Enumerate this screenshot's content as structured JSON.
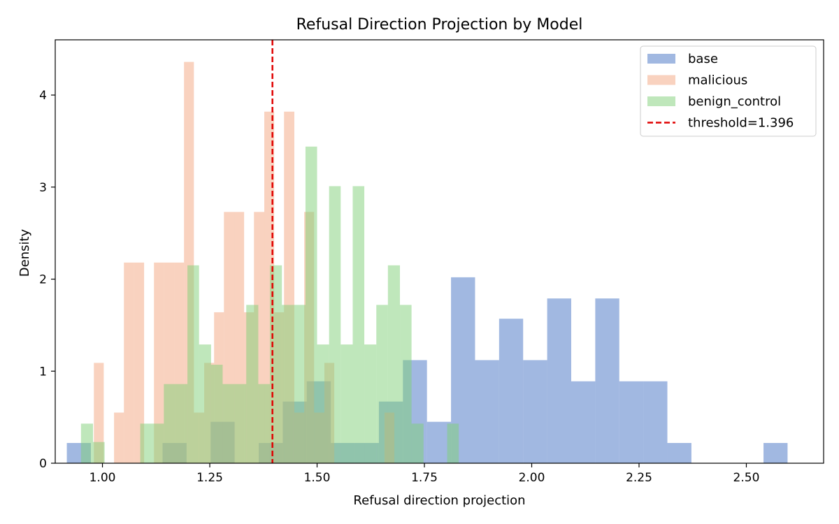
{
  "chart_data": {
    "type": "histogram",
    "title": "Refusal Direction Projection by Model",
    "xlabel": "Refusal direction projection",
    "ylabel": "Density",
    "xlim": [
      0.89,
      2.68
    ],
    "ylim": [
      0,
      4.6
    ],
    "xticks": [
      "1.00",
      "1.25",
      "1.50",
      "1.75",
      "2.00",
      "2.25",
      "2.50"
    ],
    "yticks": [
      "0",
      "1",
      "2",
      "3",
      "4"
    ],
    "grid": false,
    "legend_position": "top-right",
    "threshold": {
      "label": "threshold=1.396",
      "value": 1.396,
      "color": "#e00000"
    },
    "series": [
      {
        "name": "base",
        "color": "#4472c4",
        "bins": [
          {
            "x0": 0.917,
            "x1": 0.973,
            "density": 0.22
          },
          {
            "x0": 1.14,
            "x1": 1.196,
            "density": 0.22
          },
          {
            "x0": 1.252,
            "x1": 1.308,
            "density": 0.45
          },
          {
            "x0": 1.364,
            "x1": 1.42,
            "density": 0.22
          },
          {
            "x0": 1.42,
            "x1": 1.476,
            "density": 0.67
          },
          {
            "x0": 1.476,
            "x1": 1.532,
            "density": 0.89
          },
          {
            "x0": 1.532,
            "x1": 1.588,
            "density": 0.22
          },
          {
            "x0": 1.588,
            "x1": 1.644,
            "density": 0.22
          },
          {
            "x0": 1.644,
            "x1": 1.7,
            "density": 0.67
          },
          {
            "x0": 1.7,
            "x1": 1.756,
            "density": 1.12
          },
          {
            "x0": 1.756,
            "x1": 1.812,
            "density": 0.45
          },
          {
            "x0": 1.812,
            "x1": 1.868,
            "density": 2.02
          },
          {
            "x0": 1.868,
            "x1": 1.924,
            "density": 1.12
          },
          {
            "x0": 1.924,
            "x1": 1.98,
            "density": 1.57
          },
          {
            "x0": 1.98,
            "x1": 2.036,
            "density": 1.12
          },
          {
            "x0": 2.036,
            "x1": 2.092,
            "density": 1.79
          },
          {
            "x0": 2.092,
            "x1": 2.148,
            "density": 0.89
          },
          {
            "x0": 2.148,
            "x1": 2.204,
            "density": 1.79
          },
          {
            "x0": 2.204,
            "x1": 2.26,
            "density": 0.89
          },
          {
            "x0": 2.26,
            "x1": 2.316,
            "density": 0.89
          },
          {
            "x0": 2.316,
            "x1": 2.372,
            "density": 0.22
          },
          {
            "x0": 2.54,
            "x1": 2.596,
            "density": 0.22
          }
        ]
      },
      {
        "name": "malicious",
        "color": "#f4a57f",
        "bins": [
          {
            "x0": 0.98,
            "x1": 1.003,
            "density": 1.09
          },
          {
            "x0": 1.027,
            "x1": 1.05,
            "density": 0.55
          },
          {
            "x0": 1.05,
            "x1": 1.073,
            "density": 2.18
          },
          {
            "x0": 1.073,
            "x1": 1.097,
            "density": 2.18
          },
          {
            "x0": 1.12,
            "x1": 1.143,
            "density": 2.18
          },
          {
            "x0": 1.143,
            "x1": 1.167,
            "density": 2.18
          },
          {
            "x0": 1.167,
            "x1": 1.19,
            "density": 2.18
          },
          {
            "x0": 1.19,
            "x1": 1.213,
            "density": 4.36
          },
          {
            "x0": 1.213,
            "x1": 1.237,
            "density": 0.55
          },
          {
            "x0": 1.237,
            "x1": 1.26,
            "density": 1.09
          },
          {
            "x0": 1.26,
            "x1": 1.283,
            "density": 1.64
          },
          {
            "x0": 1.283,
            "x1": 1.307,
            "density": 2.73
          },
          {
            "x0": 1.307,
            "x1": 1.33,
            "density": 2.73
          },
          {
            "x0": 1.33,
            "x1": 1.353,
            "density": 1.64
          },
          {
            "x0": 1.353,
            "x1": 1.377,
            "density": 2.73
          },
          {
            "x0": 1.377,
            "x1": 1.4,
            "density": 3.82
          },
          {
            "x0": 1.4,
            "x1": 1.423,
            "density": 1.64
          },
          {
            "x0": 1.423,
            "x1": 1.447,
            "density": 3.82
          },
          {
            "x0": 1.447,
            "x1": 1.47,
            "density": 0.55
          },
          {
            "x0": 1.47,
            "x1": 1.493,
            "density": 2.73
          },
          {
            "x0": 1.493,
            "x1": 1.517,
            "density": 0.55
          },
          {
            "x0": 1.517,
            "x1": 1.54,
            "density": 1.09
          },
          {
            "x0": 1.657,
            "x1": 1.68,
            "density": 0.55
          }
        ]
      },
      {
        "name": "benign_control",
        "color": "#7fcf77",
        "bins": [
          {
            "x0": 0.95,
            "x1": 0.978,
            "density": 0.43
          },
          {
            "x0": 0.978,
            "x1": 1.005,
            "density": 0.23
          },
          {
            "x0": 1.088,
            "x1": 1.115,
            "density": 0.43
          },
          {
            "x0": 1.115,
            "x1": 1.143,
            "density": 0.43
          },
          {
            "x0": 1.143,
            "x1": 1.17,
            "density": 0.86
          },
          {
            "x0": 1.17,
            "x1": 1.198,
            "density": 0.86
          },
          {
            "x0": 1.198,
            "x1": 1.225,
            "density": 2.15
          },
          {
            "x0": 1.225,
            "x1": 1.253,
            "density": 1.29
          },
          {
            "x0": 1.253,
            "x1": 1.28,
            "density": 1.07
          },
          {
            "x0": 1.28,
            "x1": 1.308,
            "density": 0.86
          },
          {
            "x0": 1.308,
            "x1": 1.335,
            "density": 0.86
          },
          {
            "x0": 1.335,
            "x1": 1.363,
            "density": 1.72
          },
          {
            "x0": 1.363,
            "x1": 1.39,
            "density": 0.86
          },
          {
            "x0": 1.39,
            "x1": 1.418,
            "density": 2.15
          },
          {
            "x0": 1.418,
            "x1": 1.445,
            "density": 1.72
          },
          {
            "x0": 1.445,
            "x1": 1.473,
            "density": 1.72
          },
          {
            "x0": 1.473,
            "x1": 1.5,
            "density": 3.44
          },
          {
            "x0": 1.5,
            "x1": 1.528,
            "density": 1.29
          },
          {
            "x0": 1.528,
            "x1": 1.555,
            "density": 3.01
          },
          {
            "x0": 1.555,
            "x1": 1.583,
            "density": 1.29
          },
          {
            "x0": 1.583,
            "x1": 1.61,
            "density": 3.01
          },
          {
            "x0": 1.61,
            "x1": 1.638,
            "density": 1.29
          },
          {
            "x0": 1.638,
            "x1": 1.665,
            "density": 1.72
          },
          {
            "x0": 1.665,
            "x1": 1.693,
            "density": 2.15
          },
          {
            "x0": 1.693,
            "x1": 1.72,
            "density": 1.72
          },
          {
            "x0": 1.72,
            "x1": 1.748,
            "density": 0.43
          },
          {
            "x0": 1.803,
            "x1": 1.83,
            "density": 0.43
          }
        ]
      }
    ]
  }
}
